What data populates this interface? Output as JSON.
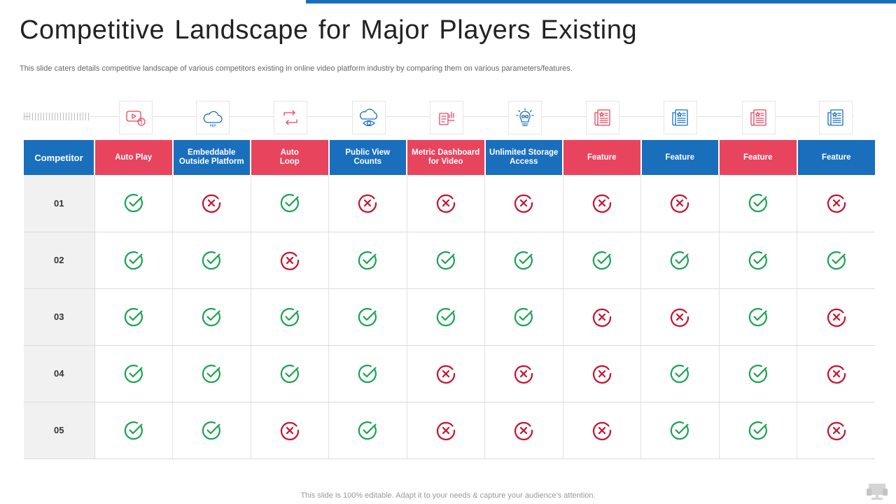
{
  "page": {
    "title": "Competitive Landscape for Major Players Existing",
    "subtitle": "This slide caters details competitive landscape of various competitors existing in online video platform industry by comparing them on various parameters/features.",
    "footer": "This slide is 100% editable. Adapt it to your needs & capture your audience’s attention."
  },
  "colors": {
    "blue": "#1a6fbd",
    "red": "#e8445e",
    "check": "#1aa350",
    "cross": "#c8102e"
  },
  "icons": [
    "video-alert-icon",
    "cloud-icon",
    "loop-arrows-icon",
    "cloud-eye-icon",
    "dashboard-report-icon",
    "lightbulb-infinity-icon",
    "newspaper-icon",
    "newspaper-icon",
    "newspaper-icon",
    "newspaper-icon"
  ],
  "table": {
    "corner_header": "Competitor",
    "columns": [
      {
        "label": "Auto Play",
        "color": "red"
      },
      {
        "label": "Embeddable\nOutside Platform",
        "color": "blue"
      },
      {
        "label": "Auto\nLoop",
        "color": "red"
      },
      {
        "label": "Public View Counts",
        "color": "blue"
      },
      {
        "label": "Metric Dashboard\nfor Video",
        "color": "red"
      },
      {
        "label": "Unlimited Storage\nAccess",
        "color": "blue"
      },
      {
        "label": "Feature",
        "color": "red"
      },
      {
        "label": "Feature",
        "color": "blue"
      },
      {
        "label": "Feature",
        "color": "red"
      },
      {
        "label": "Feature",
        "color": "blue"
      }
    ],
    "rows": [
      {
        "label": "01",
        "values": [
          true,
          false,
          true,
          false,
          false,
          false,
          false,
          false,
          true,
          false
        ]
      },
      {
        "label": "02",
        "values": [
          true,
          true,
          false,
          true,
          true,
          true,
          true,
          true,
          true,
          true
        ]
      },
      {
        "label": "03",
        "values": [
          true,
          true,
          true,
          true,
          true,
          true,
          false,
          false,
          true,
          false
        ]
      },
      {
        "label": "04",
        "values": [
          true,
          true,
          true,
          true,
          false,
          false,
          false,
          true,
          true,
          false
        ]
      },
      {
        "label": "05",
        "values": [
          true,
          true,
          false,
          true,
          false,
          false,
          false,
          true,
          true,
          false
        ]
      }
    ]
  }
}
